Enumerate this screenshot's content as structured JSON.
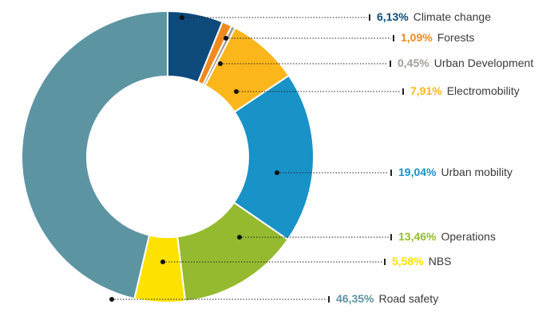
{
  "chart_data": {
    "type": "donut",
    "categories": [
      "Climate change",
      "Forests",
      "Urban Development",
      "Electromobility",
      "Urban mobility",
      "Operations",
      "NBS",
      "Road safety"
    ],
    "values": [
      6.13,
      1.09,
      0.45,
      7.91,
      19.04,
      13.46,
      5.58,
      46.35
    ],
    "value_labels": [
      "6,13%",
      "1,09%",
      "0,45%",
      "7,91%",
      "19,04%",
      "13,46%",
      "5,58%",
      "46,35%"
    ],
    "colors": [
      "#0e4a7b",
      "#f08a1e",
      "#a39f97",
      "#fbb61b",
      "#1992c7",
      "#95ba2f",
      "#fde100",
      "#5c94a2"
    ]
  }
}
